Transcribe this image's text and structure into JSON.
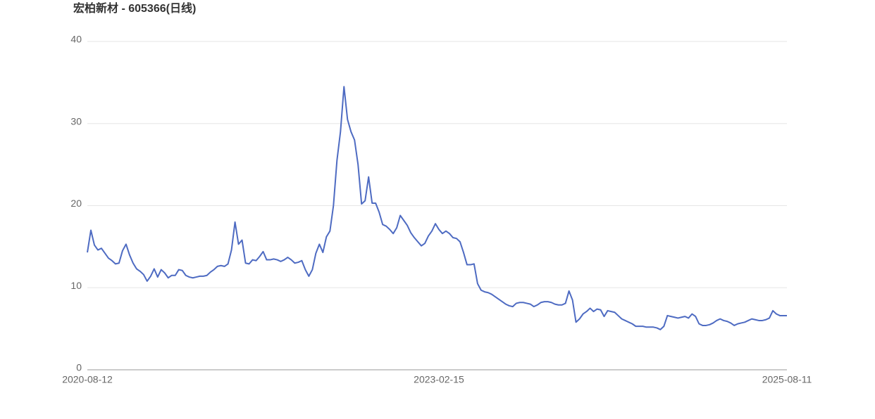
{
  "chart_data": {
    "type": "line",
    "title": "宏柏新材 - 605366(日线)",
    "categories": [
      "2020-08-12",
      null,
      null,
      null,
      null,
      null,
      null,
      null,
      null,
      null,
      null,
      null,
      null,
      null,
      null,
      null,
      null,
      null,
      null,
      null,
      null,
      null,
      null,
      null,
      null,
      null,
      null,
      null,
      null,
      null,
      null,
      null,
      null,
      null,
      null,
      null,
      null,
      null,
      null,
      null,
      null,
      null,
      null,
      null,
      null,
      null,
      null,
      null,
      null,
      null,
      null,
      null,
      null,
      null,
      null,
      null,
      null,
      null,
      null,
      null,
      null,
      null,
      null,
      null,
      null,
      null,
      null,
      null,
      null,
      null,
      null,
      null,
      null,
      null,
      null,
      null,
      null,
      null,
      null,
      null,
      null,
      null,
      null,
      null,
      null,
      null,
      null,
      null,
      null,
      null,
      null,
      null,
      null,
      null,
      null,
      null,
      null,
      null,
      null,
      null,
      "2023-02-15",
      null,
      null,
      null,
      null,
      null,
      null,
      null,
      null,
      null,
      null,
      null,
      null,
      null,
      null,
      null,
      null,
      null,
      null,
      null,
      null,
      null,
      null,
      null,
      null,
      null,
      null,
      null,
      null,
      null,
      null,
      null,
      null,
      null,
      null,
      null,
      null,
      null,
      null,
      null,
      null,
      null,
      null,
      null,
      null,
      null,
      null,
      null,
      null,
      null,
      null,
      null,
      null,
      null,
      null,
      null,
      null,
      null,
      null,
      null,
      null,
      null,
      null,
      null,
      null,
      null,
      null,
      null,
      null,
      null,
      null,
      null,
      null,
      null,
      null,
      null,
      null,
      null,
      null,
      null,
      null,
      null,
      null,
      null,
      null,
      null,
      null,
      null,
      null,
      null,
      null,
      null,
      null,
      null,
      null,
      null,
      null,
      null,
      null,
      "2025-08-11"
    ],
    "values": [
      14.3,
      17,
      15.2,
      14.6,
      14.8,
      14.2,
      13.6,
      13.3,
      12.9,
      13,
      14.5,
      15.3,
      14,
      13,
      12.3,
      12,
      11.6,
      10.8,
      11.4,
      12.3,
      11.3,
      12.2,
      11.8,
      11.2,
      11.5,
      11.5,
      12.2,
      12.1,
      11.5,
      11.3,
      11.2,
      11.3,
      11.4,
      11.4,
      11.5,
      11.9,
      12.2,
      12.6,
      12.7,
      12.6,
      12.9,
      14.6,
      18,
      15.3,
      15.8,
      13,
      12.9,
      13.4,
      13.3,
      13.8,
      14.4,
      13.4,
      13.4,
      13.5,
      13.4,
      13.2,
      13.4,
      13.7,
      13.4,
      13,
      13.1,
      13.3,
      12.2,
      11.4,
      12.2,
      14.2,
      15.3,
      14.3,
      16.2,
      16.9,
      20,
      25.5,
      29,
      34.5,
      30.5,
      29,
      28,
      25,
      20.2,
      20.6,
      23.5,
      20.3,
      20.3,
      19.2,
      17.7,
      17.5,
      17.1,
      16.6,
      17.3,
      18.8,
      18.2,
      17.6,
      16.7,
      16.1,
      15.6,
      15.1,
      15.4,
      16.3,
      16.9,
      17.8,
      17.1,
      16.6,
      16.9,
      16.6,
      16.1,
      16,
      15.6,
      14.3,
      12.8,
      12.8,
      12.9,
      10.5,
      9.7,
      9.5,
      9.4,
      9.2,
      8.9,
      8.6,
      8.3,
      8,
      7.8,
      7.7,
      8.1,
      8.2,
      8.2,
      8.1,
      8,
      7.7,
      7.9,
      8.2,
      8.3,
      8.3,
      8.2,
      8,
      7.9,
      7.9,
      8.1,
      9.6,
      8.5,
      5.8,
      6.2,
      6.8,
      7.1,
      7.5,
      7.1,
      7.4,
      7.3,
      6.5,
      7.2,
      7.1,
      7,
      6.6,
      6.2,
      6,
      5.8,
      5.6,
      5.3,
      5.3,
      5.3,
      5.2,
      5.2,
      5.2,
      5.1,
      4.9,
      5.3,
      6.6,
      6.5,
      6.4,
      6.3,
      6.4,
      6.5,
      6.3,
      6.8,
      6.5,
      5.6,
      5.4,
      5.4,
      5.5,
      5.7,
      6,
      6.2,
      6,
      5.9,
      5.7,
      5.4,
      5.6,
      5.7,
      5.8,
      6,
      6.2,
      6.1,
      6,
      6,
      6.1,
      6.3,
      7.2,
      6.8,
      6.6,
      6.6,
      6.6
    ],
    "color": "#4e6bc2",
    "ylim": [
      0,
      40
    ],
    "yticks": [
      0,
      10,
      20,
      30,
      40
    ],
    "grid": true
  }
}
